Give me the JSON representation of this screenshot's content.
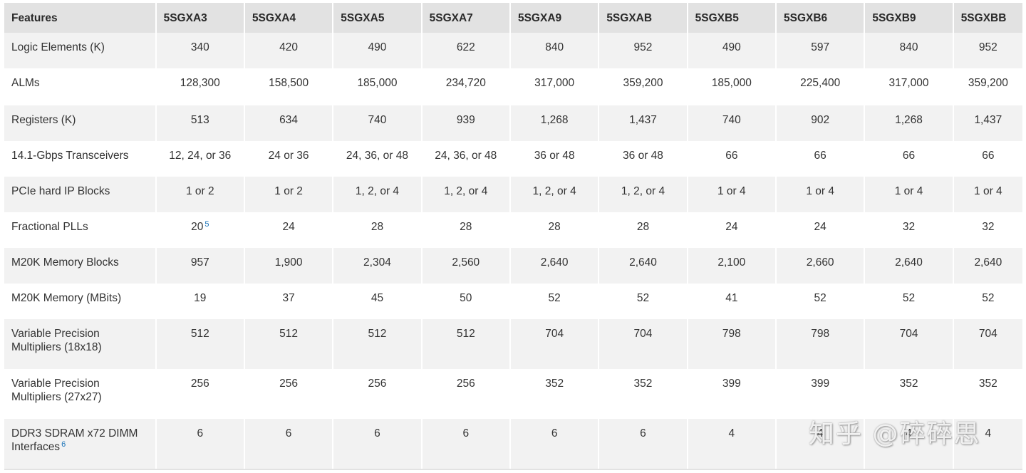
{
  "table": {
    "header": [
      "Features",
      "5SGXA3",
      "5SGXA4",
      "5SGXA5",
      "5SGXA7",
      "5SGXA9",
      "5SGXAB",
      "5SGXB5",
      "5SGXB6",
      "5SGXB9",
      "5SGXBB"
    ],
    "rows": [
      {
        "label": [
          "Logic Elements (K)"
        ],
        "sup": "",
        "values": [
          "340",
          "420",
          "490",
          "622",
          "840",
          "952",
          "490",
          "597",
          "840",
          "952"
        ]
      },
      {
        "label": [
          "ALMs"
        ],
        "sup": "",
        "values": [
          "128,300",
          "158,500",
          "185,000",
          "234,720",
          "317,000",
          "359,200",
          "185,000",
          "225,400",
          "317,000",
          "359,200"
        ]
      },
      {
        "label": [
          "Registers (K)"
        ],
        "sup": "",
        "values": [
          "513",
          "634",
          "740",
          "939",
          "1,268",
          "1,437",
          "740",
          "902",
          "1,268",
          "1,437"
        ]
      },
      {
        "label": [
          "14.1-Gbps Transceivers"
        ],
        "sup": "",
        "values": [
          "12, 24, or 36",
          "24 or 36",
          "24, 36, or 48",
          "24, 36, or 48",
          "36 or 48",
          "36 or 48",
          "66",
          "66",
          "66",
          "66"
        ]
      },
      {
        "label": [
          "PCIe hard IP Blocks"
        ],
        "sup": "",
        "values": [
          "1 or 2",
          "1 or 2",
          "1, 2, or 4",
          "1, 2, or 4",
          "1, 2, or 4",
          "1, 2, or 4",
          "1 or 4",
          "1 or 4",
          "1 or 4",
          "1 or 4"
        ]
      },
      {
        "label": [
          "Fractional PLLs"
        ],
        "sup": "",
        "values": [
          "20",
          "24",
          "28",
          "28",
          "28",
          "28",
          "24",
          "24",
          "32",
          "32"
        ],
        "first_value_sup": "5"
      },
      {
        "label": [
          "M20K Memory Blocks"
        ],
        "sup": "",
        "values": [
          "957",
          "1,900",
          "2,304",
          "2,560",
          "2,640",
          "2,640",
          "2,100",
          "2,660",
          "2,640",
          "2,640"
        ]
      },
      {
        "label": [
          "M20K Memory (MBits)"
        ],
        "sup": "",
        "values": [
          "19",
          "37",
          "45",
          "50",
          "52",
          "52",
          "41",
          "52",
          "52",
          "52"
        ]
      },
      {
        "label": [
          "Variable Precision",
          "Multipliers (18x18)"
        ],
        "sup": "",
        "values": [
          "512",
          "512",
          "512",
          "512",
          "704",
          "704",
          "798",
          "798",
          "704",
          "704"
        ]
      },
      {
        "label": [
          "Variable Precision",
          "Multipliers (27x27)"
        ],
        "sup": "",
        "values": [
          "256",
          "256",
          "256",
          "256",
          "352",
          "352",
          "399",
          "399",
          "352",
          "352"
        ]
      },
      {
        "label": [
          "DDR3 SDRAM x72 DIMM",
          "Interfaces"
        ],
        "sup": "6",
        "values": [
          "6",
          "6",
          "6",
          "6",
          "6",
          "6",
          "4",
          "4",
          "4",
          "4"
        ]
      }
    ]
  },
  "watermark": "知乎 @碎碎思"
}
